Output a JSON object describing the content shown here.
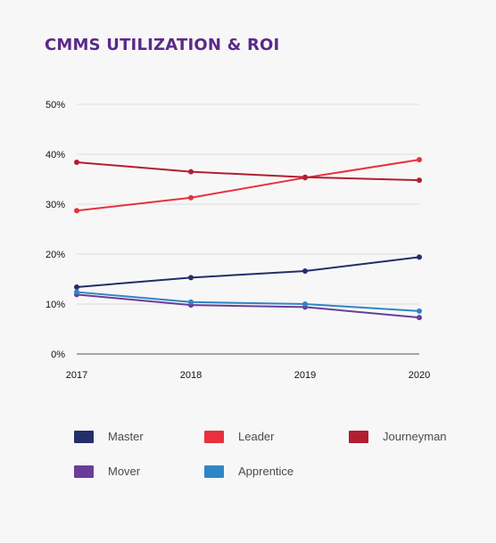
{
  "chart_data": {
    "type": "line",
    "title": "CMMS UTILIZATION & ROI",
    "x": [
      "2017",
      "2018",
      "2019",
      "2020"
    ],
    "xlabel": "",
    "ylabel": "",
    "ylim": [
      0,
      50
    ],
    "yticks": [
      {
        "value": 0,
        "label": "0%"
      },
      {
        "value": 10,
        "label": "10%"
      },
      {
        "value": 20,
        "label": "20%"
      },
      {
        "value": 30,
        "label": "30%"
      },
      {
        "value": 40,
        "label": "40%"
      },
      {
        "value": 50,
        "label": "50%"
      }
    ],
    "grid": true,
    "legend_position": "bottom",
    "series": [
      {
        "name": "Master",
        "color": "#252d6b",
        "values": [
          13.4,
          15.3,
          16.6,
          19.4
        ]
      },
      {
        "name": "Leader",
        "color": "#e8303f",
        "values": [
          28.7,
          31.3,
          35.3,
          38.9
        ]
      },
      {
        "name": "Journeyman",
        "color": "#b11f30",
        "values": [
          38.4,
          36.5,
          35.4,
          34.8
        ]
      },
      {
        "name": "Mover",
        "color": "#6a3d9a",
        "values": [
          11.9,
          9.8,
          9.4,
          7.3
        ]
      },
      {
        "name": "Apprentice",
        "color": "#2f86c6",
        "values": [
          12.4,
          10.4,
          10.0,
          8.6
        ]
      }
    ]
  },
  "colors": {
    "title": "#5a2a8a",
    "background": "#f7f7f7",
    "gridline": "#dddddd",
    "baseline": "#a6a6a6"
  }
}
